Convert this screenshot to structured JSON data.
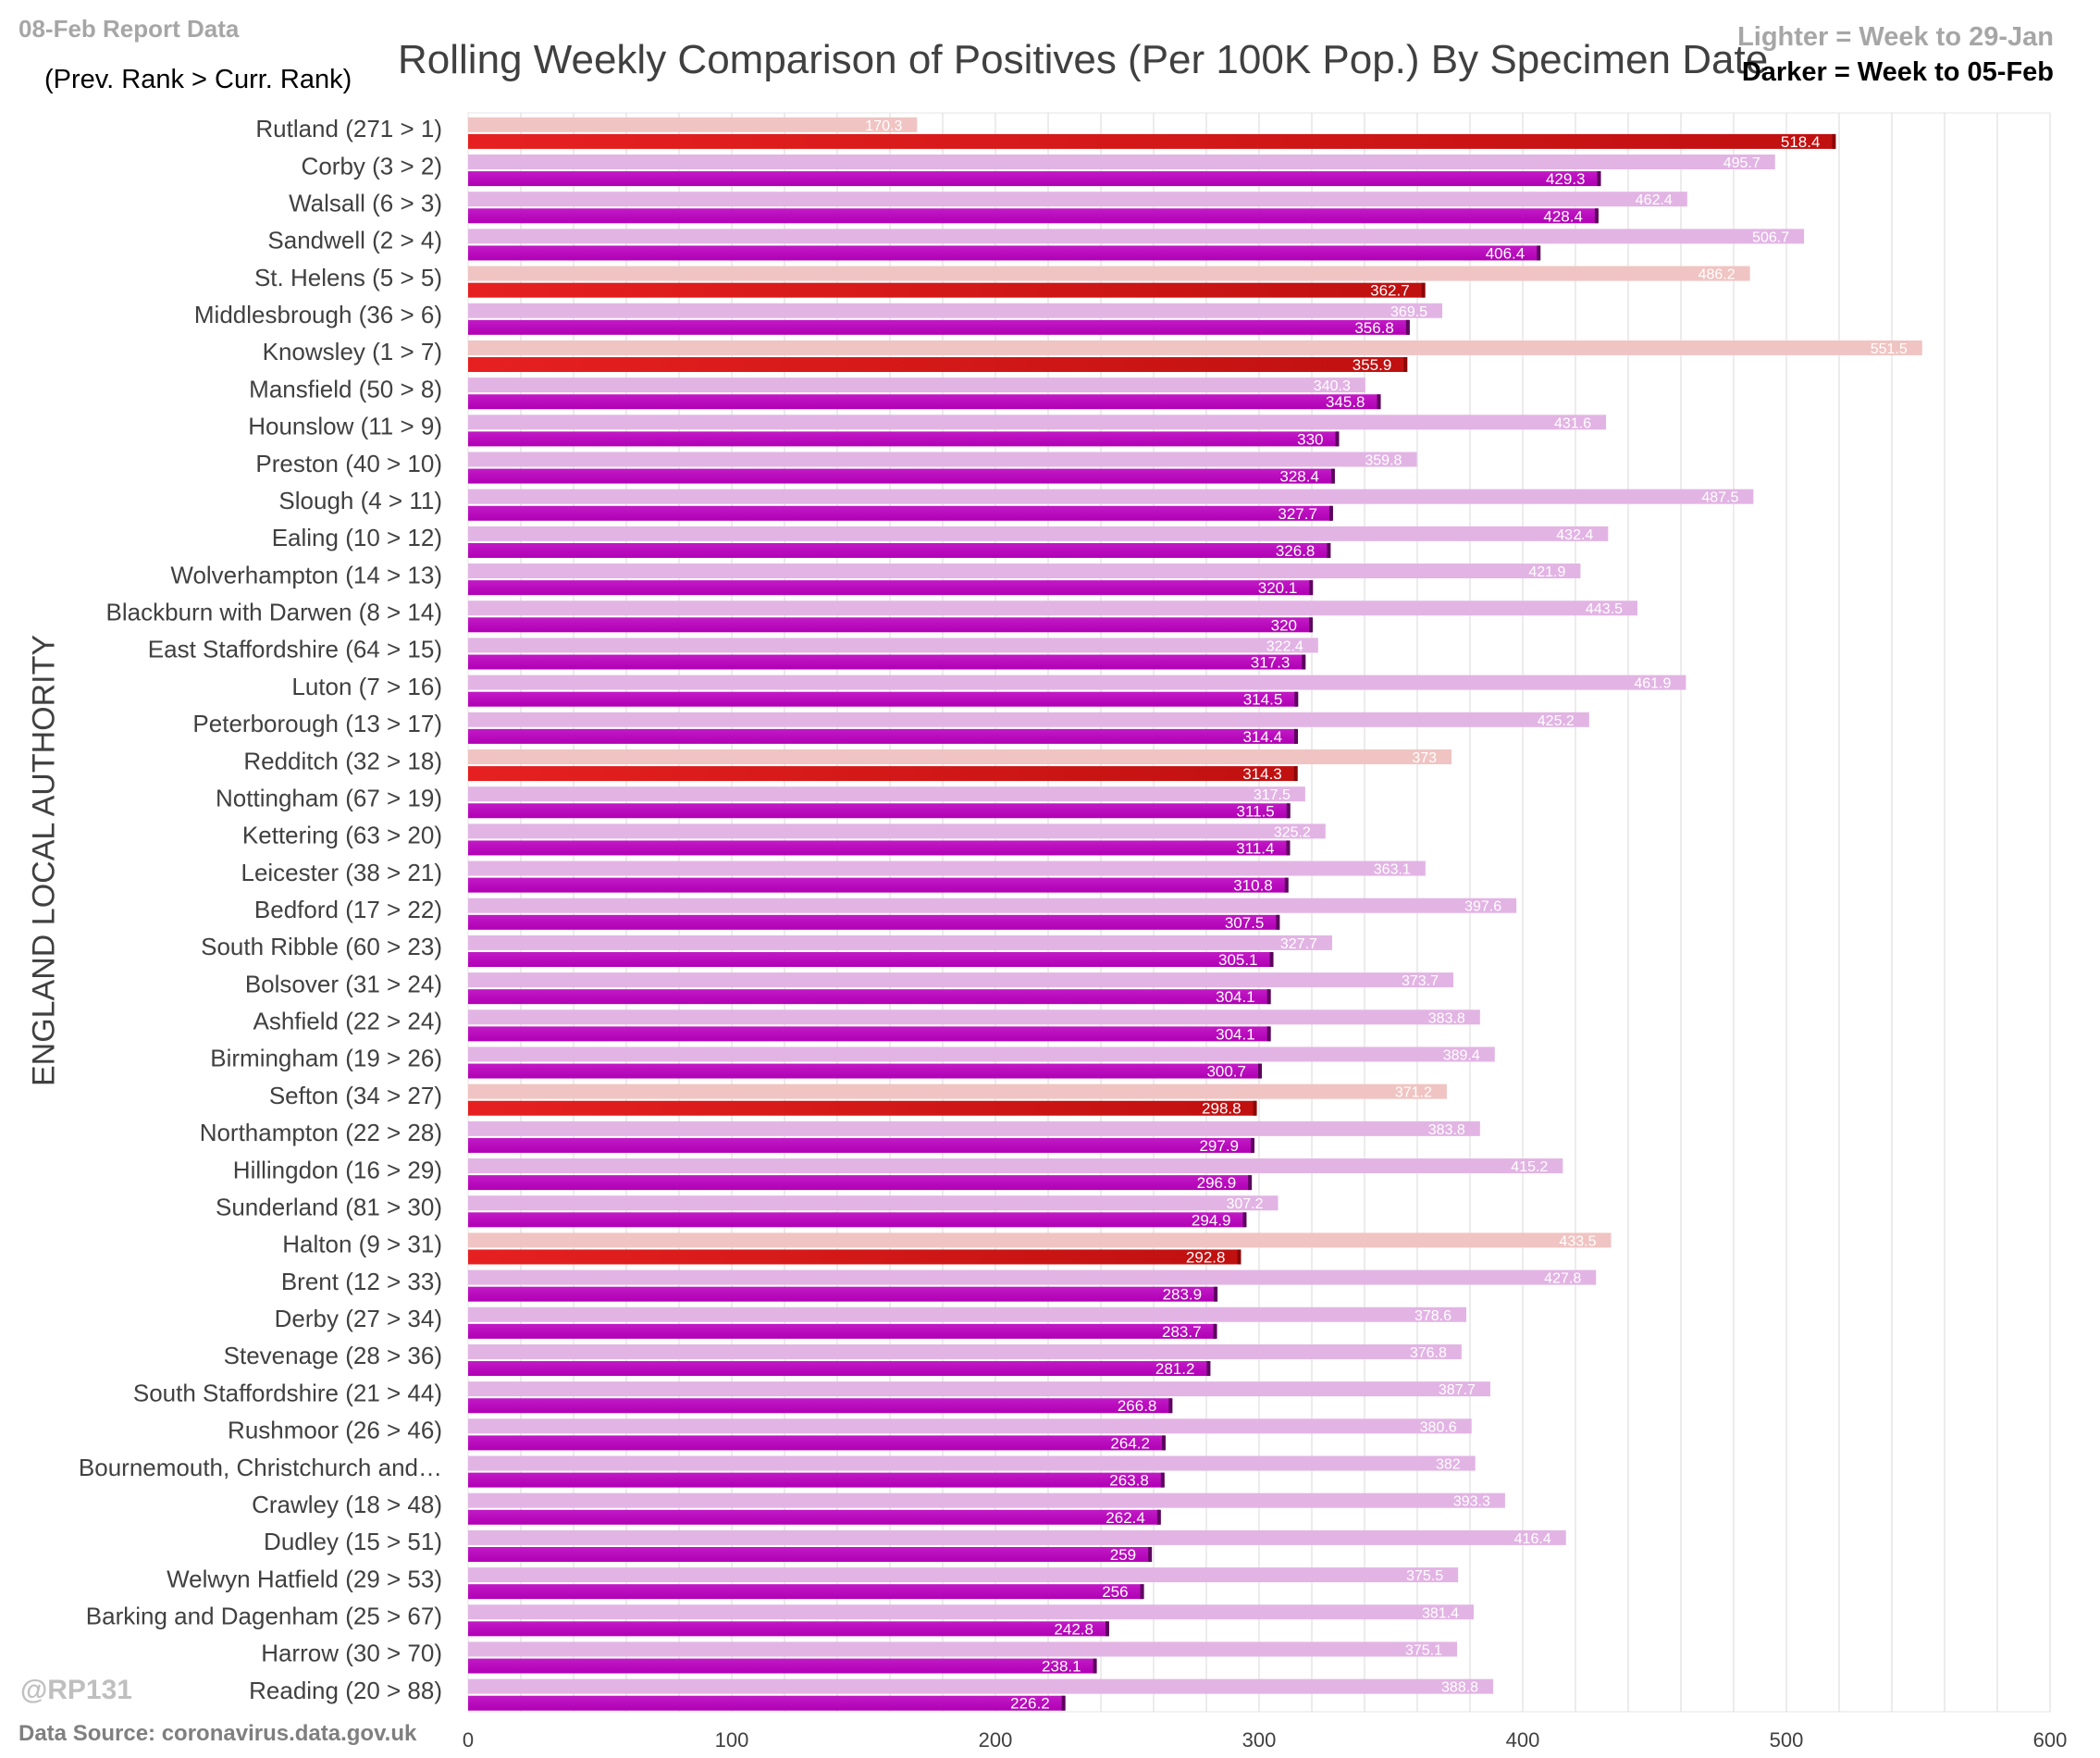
{
  "header": {
    "report_date": "08-Feb Report Data",
    "rank_note": "(Prev. Rank > Curr. Rank)",
    "title": "Rolling Weekly Comparison of Positives  (Per 100K Pop.) By Specimen Date",
    "legend_light": "Lighter =  Week to 29-Jan",
    "legend_dark": "Darker =  Week to 05-Feb"
  },
  "footer": {
    "handle": "@RP131",
    "source": "Data Source: coronavirus.data.gov.uk"
  },
  "colors": {
    "purple_dark": "#b000b4",
    "purple_light": "#e2b4e4",
    "red_dark": "#dc1616",
    "red_light": "#f0c4c2",
    "grid": "#d9d9d9"
  },
  "chart_data": {
    "type": "bar",
    "orientation": "horizontal",
    "ylabel": "ENGLAND LOCAL AUTHORITY",
    "xlim": [
      0,
      600
    ],
    "xticks": [
      0,
      100,
      200,
      300,
      400,
      500,
      600
    ],
    "grid": "vertical",
    "legend": "top-right",
    "categories": [
      "Rutland (271 > 1)",
      "Corby (3 > 2)",
      "Walsall (6 > 3)",
      "Sandwell (2 > 4)",
      "St. Helens (5 > 5)",
      "Middlesbrough (36 > 6)",
      "Knowsley (1 > 7)",
      "Mansfield (50 > 8)",
      "Hounslow (11 > 9)",
      "Preston (40 > 10)",
      "Slough (4 > 11)",
      "Ealing (10 > 12)",
      "Wolverhampton (14 > 13)",
      "Blackburn with Darwen (8 > 14)",
      "East Staffordshire (64 > 15)",
      "Luton (7 > 16)",
      "Peterborough (13 > 17)",
      "Redditch (32 > 18)",
      "Nottingham (67 > 19)",
      "Kettering (63 > 20)",
      "Leicester (38 > 21)",
      "Bedford (17 > 22)",
      "South Ribble (60 > 23)",
      "Bolsover (31 > 24)",
      "Ashfield (22 > 24)",
      "Birmingham (19 > 26)",
      "Sefton (34 > 27)",
      "Northampton (22 > 28)",
      "Hillingdon (16 > 29)",
      "Sunderland (81 > 30)",
      "Halton (9 > 31)",
      "Brent (12 > 33)",
      "Derby (27 > 34)",
      "Stevenage (28 > 36)",
      "South Staffordshire (21 > 44)",
      "Rushmoor (26 > 46)",
      "Bournemouth, Christchurch and…",
      "Crawley (18 > 48)",
      "Dudley (15 > 51)",
      "Welwyn Hatfield (29 > 53)",
      "Barking and Dagenham (25 > 67)",
      "Harrow (30 > 70)",
      "Reading (20 > 88)"
    ],
    "series": [
      {
        "name": "Week to 29-Jan",
        "values": [
          170.3,
          495.7,
          462.4,
          506.7,
          486.2,
          369.5,
          551.5,
          340.3,
          431.6,
          359.8,
          487.5,
          432.4,
          421.9,
          443.5,
          322.4,
          461.9,
          425.2,
          373,
          317.5,
          325.2,
          363.1,
          397.6,
          327.7,
          373.7,
          383.8,
          389.4,
          371.2,
          383.8,
          415.2,
          307.2,
          433.5,
          427.8,
          378.6,
          376.8,
          387.7,
          380.6,
          382,
          393.3,
          416.4,
          375.5,
          381.4,
          375.1,
          388.8
        ],
        "labels": [
          "170.3",
          "495.7",
          "462.4",
          "506.7",
          "486.2",
          "369.5",
          "551.5",
          "340.3",
          "431.6",
          "359.8",
          "487.5",
          "432.4",
          "421.9",
          "443.5",
          "322.4",
          "461.9",
          "425.2",
          "373",
          "317.5",
          "325.2",
          "363.1",
          "397.6",
          "327.7",
          "373.7",
          "383.8",
          "389.4",
          "371.2",
          "383.8",
          "415.2",
          "307.2",
          "433.5",
          "427.8",
          "378.6",
          "376.8",
          "387.7",
          "380.6",
          "382",
          "393.3",
          "416.4",
          "375.5",
          "381.4",
          "375.1",
          "388.8"
        ]
      },
      {
        "name": "Week to 05-Feb",
        "values": [
          518.4,
          429.3,
          428.4,
          406.4,
          362.7,
          356.8,
          355.9,
          345.8,
          330,
          328.4,
          327.7,
          326.8,
          320.1,
          320,
          317.3,
          314.5,
          314.4,
          314.3,
          311.5,
          311.4,
          310.8,
          307.5,
          305.1,
          304.1,
          304.1,
          300.7,
          298.8,
          297.9,
          296.9,
          294.9,
          292.8,
          283.9,
          283.7,
          281.2,
          266.8,
          264.2,
          263.8,
          262.4,
          259,
          256,
          242.8,
          238.1,
          226.2
        ],
        "labels": [
          "518.4",
          "429.3",
          "428.4",
          "406.4",
          "362.7",
          "356.8",
          "355.9",
          "345.8",
          "330",
          "328.4",
          "327.7",
          "326.8",
          "320.1",
          "320",
          "317.3",
          "314.5",
          "314.4",
          "314.3",
          "311.5",
          "311.4",
          "310.8",
          "307.5",
          "305.1",
          "304.1",
          "304.1",
          "300.7",
          "298.8",
          "297.9",
          "296.9",
          "294.9",
          "292.8",
          "283.9",
          "283.7",
          "281.2",
          "266.8",
          "264.2",
          "263.8",
          "262.4",
          "259",
          "256",
          "242.8",
          "238.1",
          "226.2"
        ]
      }
    ],
    "highlighted": [
      true,
      false,
      false,
      false,
      true,
      false,
      true,
      false,
      false,
      false,
      false,
      false,
      false,
      false,
      false,
      false,
      false,
      true,
      false,
      false,
      false,
      false,
      false,
      false,
      false,
      false,
      true,
      false,
      false,
      false,
      true,
      false,
      false,
      false,
      false,
      false,
      false,
      false,
      false,
      false,
      false,
      false,
      false
    ]
  }
}
